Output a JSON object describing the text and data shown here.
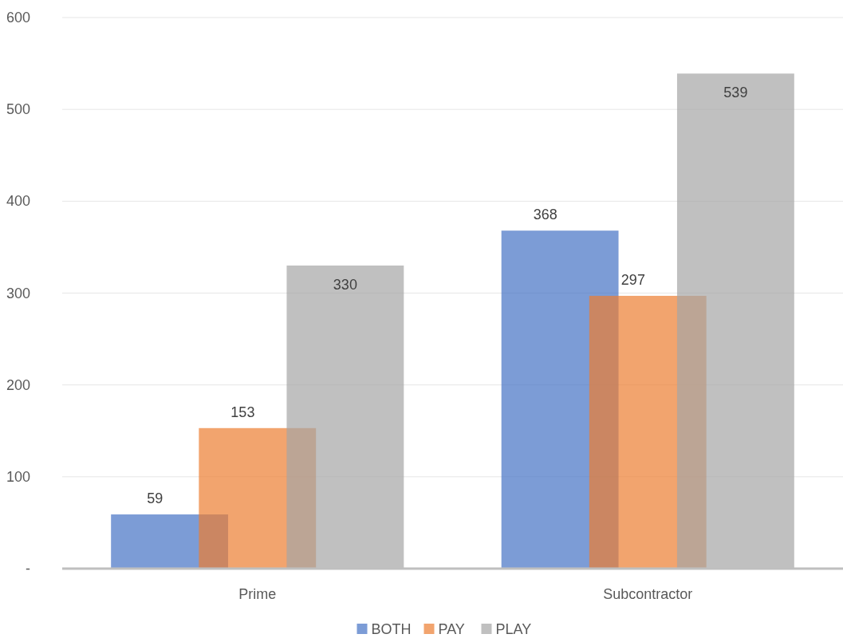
{
  "chart_data": {
    "type": "bar",
    "categories": [
      "Prime",
      "Subcontractor"
    ],
    "series": [
      {
        "name": "BOTH",
        "color": "#4472c4",
        "values": [
          59,
          368
        ]
      },
      {
        "name": "PAY",
        "color": "#ed7d31",
        "values": [
          153,
          297
        ]
      },
      {
        "name": "PLAY",
        "color": "#a5a5a5",
        "values": [
          330,
          539
        ]
      }
    ],
    "ylim": [
      0,
      600
    ],
    "yticks": [
      {
        "value": 0,
        "label": "-"
      },
      100,
      200,
      300,
      400,
      500,
      600
    ],
    "grid": "y",
    "legend": "bottom",
    "data_labels": true
  }
}
